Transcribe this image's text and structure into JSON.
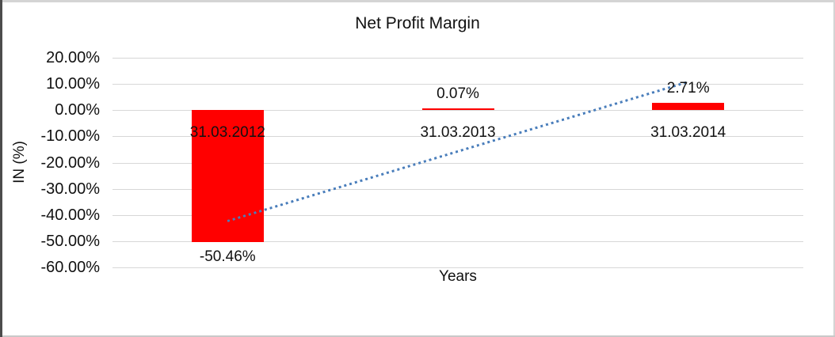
{
  "frame": {
    "background": "#ffffff",
    "edge_dark": "#4c4c4c",
    "edge_light": "#d4d4d4",
    "edge_bottom": "#c9c9c9"
  },
  "chart_data": {
    "type": "bar",
    "title": "Net Profit Margin",
    "xlabel": "Years",
    "ylabel": "IN (%)",
    "categories": [
      "31.03.2012",
      "31.03.2013",
      "31.03.2014"
    ],
    "values": [
      -50.46,
      0.07,
      2.71
    ],
    "data_labels": [
      "-50.46%",
      "0.07%",
      "2.71%"
    ],
    "ylim": [
      -60,
      20
    ],
    "ytick_step": 10,
    "ytick_labels": [
      "20.00%",
      "10.00%",
      "0.00%",
      "-10.00%",
      "-20.00%",
      "-30.00%",
      "-40.00%",
      "-50.00%",
      "-60.00%"
    ],
    "grid": true,
    "legend": "none",
    "bar_color": "#ff0000",
    "gridline_color": "#d7d7d7",
    "text_color": "#111111",
    "trendline": {
      "type": "linear",
      "style": "dotted",
      "color": "#4a7ebb",
      "from_category_index": 0,
      "to_category_index": 2,
      "start_value": -42.45,
      "end_value": 10.67
    }
  }
}
